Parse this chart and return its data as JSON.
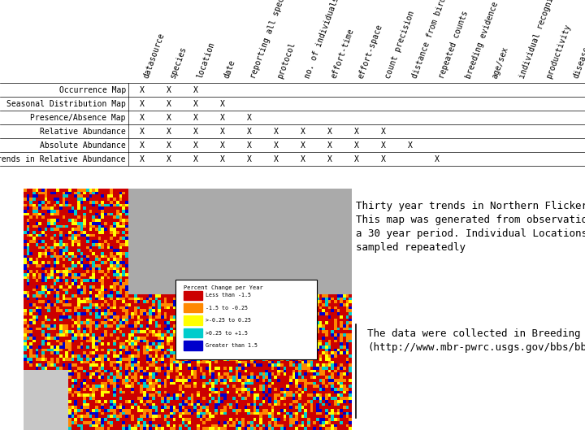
{
  "table": {
    "row_labels": [
      "Occurrence Map",
      "Seasonal Distribution Map",
      "Presence/Absence Map",
      "Relative Abundance",
      "Absolute Abundance",
      "Trends in Relative Abundance"
    ],
    "col_labels": [
      "datasource",
      "species",
      "location",
      "date",
      "reporting all species",
      "protocol",
      "no. of individuals",
      "effort-time",
      "effort-space",
      "count precision",
      "distance from bird",
      "repeated counts",
      "breeding evidence",
      "age/sex",
      "individual recognition",
      "productivity",
      "disease"
    ],
    "x_marks": [
      [
        1,
        1,
        1,
        0,
        0,
        0,
        0,
        0,
        0,
        0,
        0,
        0,
        0,
        0,
        0,
        0,
        0
      ],
      [
        1,
        1,
        1,
        1,
        0,
        0,
        0,
        0,
        0,
        0,
        0,
        0,
        0,
        0,
        0,
        0,
        0
      ],
      [
        1,
        1,
        1,
        1,
        1,
        0,
        0,
        0,
        0,
        0,
        0,
        0,
        0,
        0,
        0,
        0,
        0
      ],
      [
        1,
        1,
        1,
        1,
        1,
        1,
        1,
        1,
        1,
        1,
        0,
        0,
        0,
        0,
        0,
        0,
        0
      ],
      [
        1,
        1,
        1,
        1,
        1,
        1,
        1,
        1,
        1,
        1,
        1,
        0,
        0,
        0,
        0,
        0,
        0
      ],
      [
        1,
        1,
        1,
        1,
        1,
        1,
        1,
        1,
        1,
        1,
        0,
        1,
        0,
        0,
        0,
        0,
        0
      ]
    ]
  },
  "text_right_top": "Thirty year trends in Northern Flicker occurrence.\nThis map was generated from observations made over\na 30 year period. Individual Locations (@ 3000) were\nsampled repeatedly",
  "text_right_bottom": "The data were collected in Breeding Bird Survey\n(http://www.mbr-pwrc.usgs.gov/bbs/bbs.html).",
  "legend_title": "Percent Change per Year",
  "legend_items": [
    {
      "label": "Less than -1.5",
      "color": "#cc0000"
    },
    {
      "label": "-1.5 to -0.25",
      "color": "#ff8800"
    },
    {
      "label": ">-0.25 to 0.25",
      "color": "#ffff00"
    },
    {
      "label": ">0.25 to +1.5",
      "color": "#00cccc"
    },
    {
      "label": "Greater than 1.5",
      "color": "#0000cc"
    }
  ],
  "bg_color": "#ffffff",
  "table_font_size": 7,
  "text_font_size": 9
}
